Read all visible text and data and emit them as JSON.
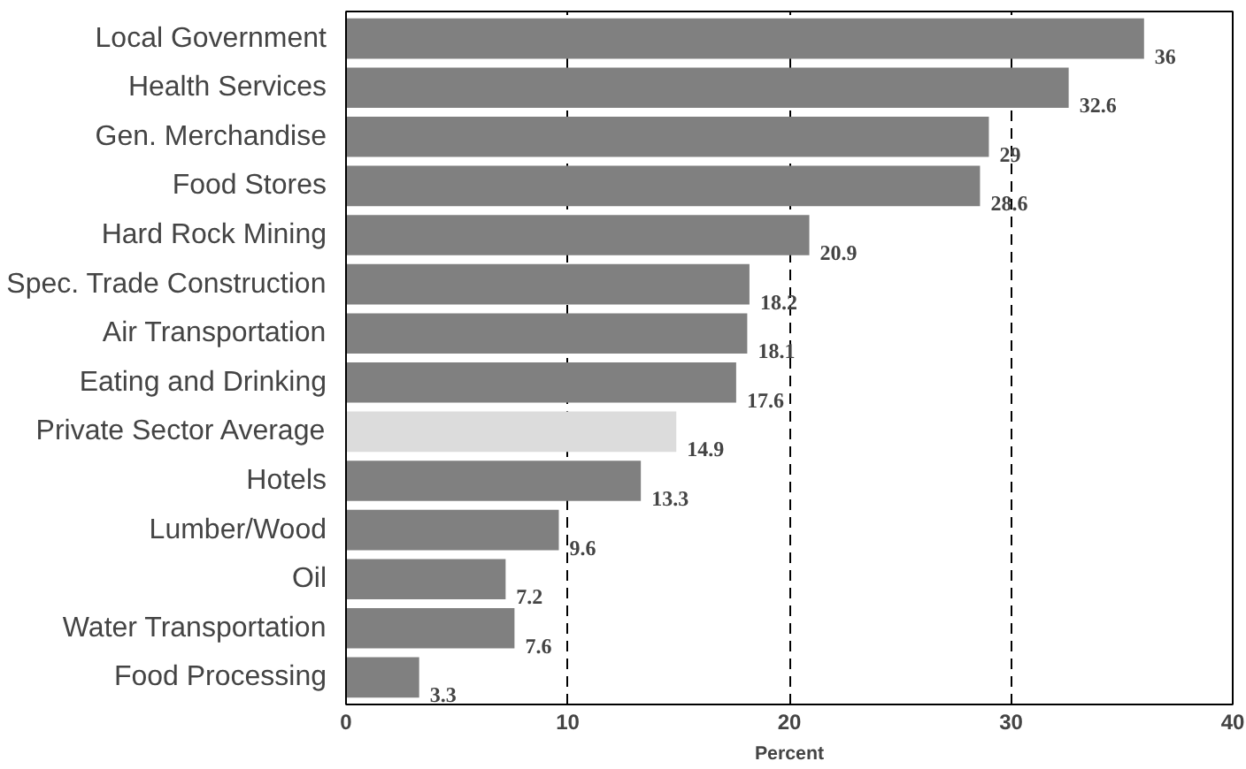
{
  "chart_data": {
    "type": "bar",
    "orientation": "horizontal",
    "xlabel": "Percent",
    "categories": [
      "Local Government",
      "Health Services",
      "Gen. Merchandise",
      "Food Stores",
      "Hard Rock Mining",
      "Spec. Trade Construction",
      "Air Transportation",
      "Eating and Drinking",
      "Private Sector Average",
      "Hotels",
      "Lumber/Wood",
      "Oil",
      "Water Transportation",
      "Food Processing"
    ],
    "values": [
      36,
      32.6,
      29,
      28.6,
      20.9,
      18.2,
      18.1,
      17.6,
      14.9,
      13.3,
      9.6,
      7.2,
      7.6,
      3.3
    ],
    "colors": [
      "#808080",
      "#808080",
      "#808080",
      "#808080",
      "#808080",
      "#808080",
      "#808080",
      "#808080",
      "#dcdcdc",
      "#808080",
      "#808080",
      "#808080",
      "#808080",
      "#808080"
    ],
    "xlim": [
      0,
      40
    ],
    "xticks": [
      0,
      10,
      20,
      30,
      40
    ],
    "grid": "x",
    "data_labels": true
  }
}
